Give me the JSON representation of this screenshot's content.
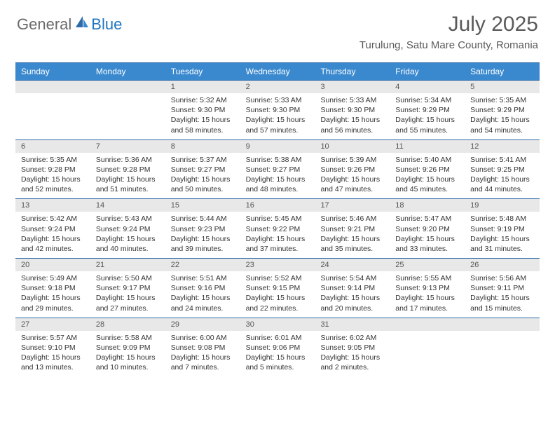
{
  "logo": {
    "general": "General",
    "blue": "Blue"
  },
  "title": "July 2025",
  "location": "Turulung, Satu Mare County, Romania",
  "colors": {
    "header_bg": "#3a89cf",
    "header_border": "#2d6aa8",
    "daynum_bg": "#e8e8e8",
    "text": "#333333",
    "title_text": "#5a5a5a",
    "logo_blue": "#2176c1",
    "logo_gray": "#6a6a6a"
  },
  "weekdays": [
    "Sunday",
    "Monday",
    "Tuesday",
    "Wednesday",
    "Thursday",
    "Friday",
    "Saturday"
  ],
  "weeks": [
    [
      {
        "n": "",
        "sr": "",
        "ss": "",
        "dl1": "",
        "dl2": ""
      },
      {
        "n": "",
        "sr": "",
        "ss": "",
        "dl1": "",
        "dl2": ""
      },
      {
        "n": "1",
        "sr": "Sunrise: 5:32 AM",
        "ss": "Sunset: 9:30 PM",
        "dl1": "Daylight: 15 hours",
        "dl2": "and 58 minutes."
      },
      {
        "n": "2",
        "sr": "Sunrise: 5:33 AM",
        "ss": "Sunset: 9:30 PM",
        "dl1": "Daylight: 15 hours",
        "dl2": "and 57 minutes."
      },
      {
        "n": "3",
        "sr": "Sunrise: 5:33 AM",
        "ss": "Sunset: 9:30 PM",
        "dl1": "Daylight: 15 hours",
        "dl2": "and 56 minutes."
      },
      {
        "n": "4",
        "sr": "Sunrise: 5:34 AM",
        "ss": "Sunset: 9:29 PM",
        "dl1": "Daylight: 15 hours",
        "dl2": "and 55 minutes."
      },
      {
        "n": "5",
        "sr": "Sunrise: 5:35 AM",
        "ss": "Sunset: 9:29 PM",
        "dl1": "Daylight: 15 hours",
        "dl2": "and 54 minutes."
      }
    ],
    [
      {
        "n": "6",
        "sr": "Sunrise: 5:35 AM",
        "ss": "Sunset: 9:28 PM",
        "dl1": "Daylight: 15 hours",
        "dl2": "and 52 minutes."
      },
      {
        "n": "7",
        "sr": "Sunrise: 5:36 AM",
        "ss": "Sunset: 9:28 PM",
        "dl1": "Daylight: 15 hours",
        "dl2": "and 51 minutes."
      },
      {
        "n": "8",
        "sr": "Sunrise: 5:37 AM",
        "ss": "Sunset: 9:27 PM",
        "dl1": "Daylight: 15 hours",
        "dl2": "and 50 minutes."
      },
      {
        "n": "9",
        "sr": "Sunrise: 5:38 AM",
        "ss": "Sunset: 9:27 PM",
        "dl1": "Daylight: 15 hours",
        "dl2": "and 48 minutes."
      },
      {
        "n": "10",
        "sr": "Sunrise: 5:39 AM",
        "ss": "Sunset: 9:26 PM",
        "dl1": "Daylight: 15 hours",
        "dl2": "and 47 minutes."
      },
      {
        "n": "11",
        "sr": "Sunrise: 5:40 AM",
        "ss": "Sunset: 9:26 PM",
        "dl1": "Daylight: 15 hours",
        "dl2": "and 45 minutes."
      },
      {
        "n": "12",
        "sr": "Sunrise: 5:41 AM",
        "ss": "Sunset: 9:25 PM",
        "dl1": "Daylight: 15 hours",
        "dl2": "and 44 minutes."
      }
    ],
    [
      {
        "n": "13",
        "sr": "Sunrise: 5:42 AM",
        "ss": "Sunset: 9:24 PM",
        "dl1": "Daylight: 15 hours",
        "dl2": "and 42 minutes."
      },
      {
        "n": "14",
        "sr": "Sunrise: 5:43 AM",
        "ss": "Sunset: 9:24 PM",
        "dl1": "Daylight: 15 hours",
        "dl2": "and 40 minutes."
      },
      {
        "n": "15",
        "sr": "Sunrise: 5:44 AM",
        "ss": "Sunset: 9:23 PM",
        "dl1": "Daylight: 15 hours",
        "dl2": "and 39 minutes."
      },
      {
        "n": "16",
        "sr": "Sunrise: 5:45 AM",
        "ss": "Sunset: 9:22 PM",
        "dl1": "Daylight: 15 hours",
        "dl2": "and 37 minutes."
      },
      {
        "n": "17",
        "sr": "Sunrise: 5:46 AM",
        "ss": "Sunset: 9:21 PM",
        "dl1": "Daylight: 15 hours",
        "dl2": "and 35 minutes."
      },
      {
        "n": "18",
        "sr": "Sunrise: 5:47 AM",
        "ss": "Sunset: 9:20 PM",
        "dl1": "Daylight: 15 hours",
        "dl2": "and 33 minutes."
      },
      {
        "n": "19",
        "sr": "Sunrise: 5:48 AM",
        "ss": "Sunset: 9:19 PM",
        "dl1": "Daylight: 15 hours",
        "dl2": "and 31 minutes."
      }
    ],
    [
      {
        "n": "20",
        "sr": "Sunrise: 5:49 AM",
        "ss": "Sunset: 9:18 PM",
        "dl1": "Daylight: 15 hours",
        "dl2": "and 29 minutes."
      },
      {
        "n": "21",
        "sr": "Sunrise: 5:50 AM",
        "ss": "Sunset: 9:17 PM",
        "dl1": "Daylight: 15 hours",
        "dl2": "and 27 minutes."
      },
      {
        "n": "22",
        "sr": "Sunrise: 5:51 AM",
        "ss": "Sunset: 9:16 PM",
        "dl1": "Daylight: 15 hours",
        "dl2": "and 24 minutes."
      },
      {
        "n": "23",
        "sr": "Sunrise: 5:52 AM",
        "ss": "Sunset: 9:15 PM",
        "dl1": "Daylight: 15 hours",
        "dl2": "and 22 minutes."
      },
      {
        "n": "24",
        "sr": "Sunrise: 5:54 AM",
        "ss": "Sunset: 9:14 PM",
        "dl1": "Daylight: 15 hours",
        "dl2": "and 20 minutes."
      },
      {
        "n": "25",
        "sr": "Sunrise: 5:55 AM",
        "ss": "Sunset: 9:13 PM",
        "dl1": "Daylight: 15 hours",
        "dl2": "and 17 minutes."
      },
      {
        "n": "26",
        "sr": "Sunrise: 5:56 AM",
        "ss": "Sunset: 9:11 PM",
        "dl1": "Daylight: 15 hours",
        "dl2": "and 15 minutes."
      }
    ],
    [
      {
        "n": "27",
        "sr": "Sunrise: 5:57 AM",
        "ss": "Sunset: 9:10 PM",
        "dl1": "Daylight: 15 hours",
        "dl2": "and 13 minutes."
      },
      {
        "n": "28",
        "sr": "Sunrise: 5:58 AM",
        "ss": "Sunset: 9:09 PM",
        "dl1": "Daylight: 15 hours",
        "dl2": "and 10 minutes."
      },
      {
        "n": "29",
        "sr": "Sunrise: 6:00 AM",
        "ss": "Sunset: 9:08 PM",
        "dl1": "Daylight: 15 hours",
        "dl2": "and 7 minutes."
      },
      {
        "n": "30",
        "sr": "Sunrise: 6:01 AM",
        "ss": "Sunset: 9:06 PM",
        "dl1": "Daylight: 15 hours",
        "dl2": "and 5 minutes."
      },
      {
        "n": "31",
        "sr": "Sunrise: 6:02 AM",
        "ss": "Sunset: 9:05 PM",
        "dl1": "Daylight: 15 hours",
        "dl2": "and 2 minutes."
      },
      {
        "n": "",
        "sr": "",
        "ss": "",
        "dl1": "",
        "dl2": ""
      },
      {
        "n": "",
        "sr": "",
        "ss": "",
        "dl1": "",
        "dl2": ""
      }
    ]
  ]
}
